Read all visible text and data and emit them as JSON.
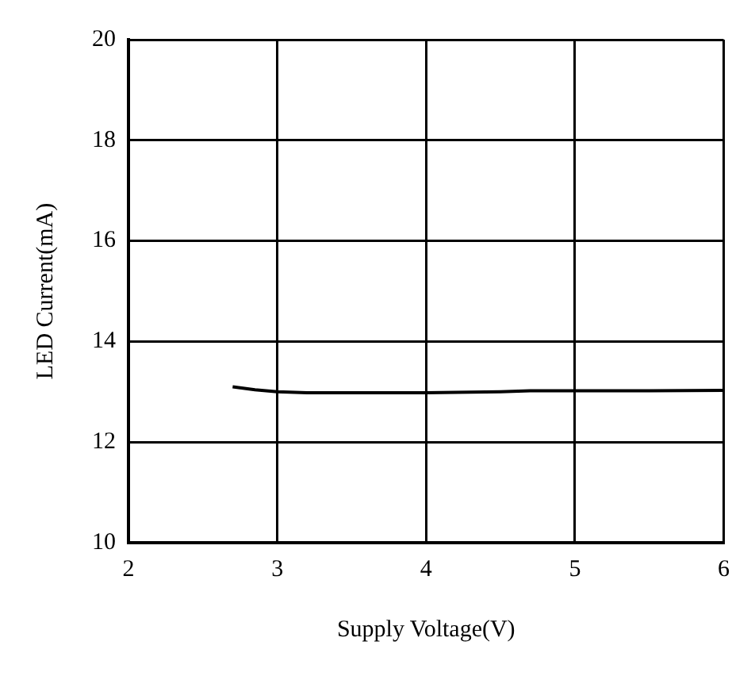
{
  "chart_data": {
    "type": "line",
    "xlabel": "Supply Voltage(V)",
    "ylabel": "LED Current(mA)",
    "x": [
      2.7,
      2.85,
      3,
      3.2,
      3.5,
      4,
      4.5,
      4.7,
      5,
      5.5,
      6
    ],
    "series": [
      {
        "color": "#000000",
        "values": [
          13.1,
          13.04,
          13.0,
          12.98,
          12.98,
          12.98,
          13.0,
          13.02,
          13.02,
          13.02,
          13.03
        ]
      }
    ],
    "xlim": [
      2,
      6
    ],
    "xticks": [
      2,
      3,
      4,
      5,
      6
    ],
    "ylim": [
      10,
      20
    ],
    "yticks": [
      10,
      12,
      14,
      16,
      18,
      20
    ],
    "grid": true,
    "legend": false,
    "marker": "none",
    "line_style": "solid"
  }
}
